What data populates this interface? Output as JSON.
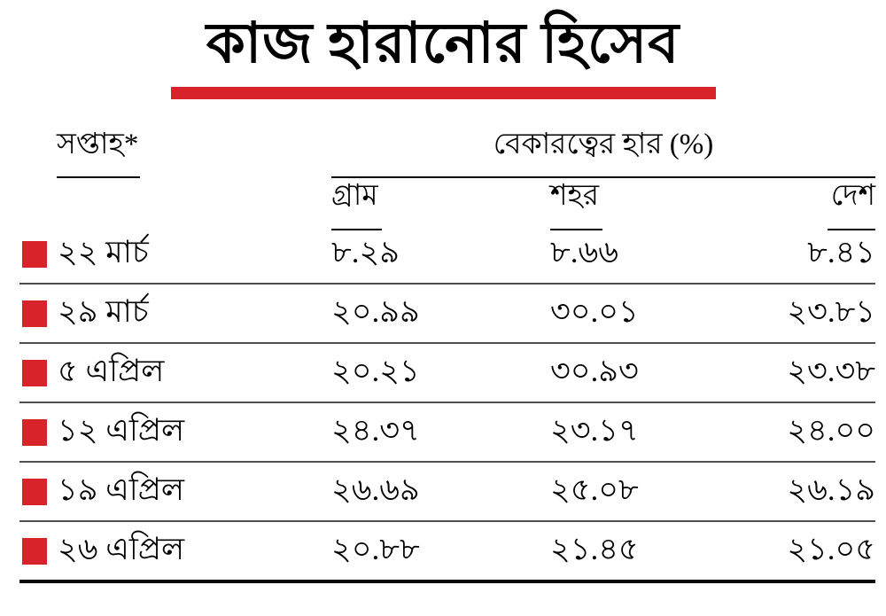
{
  "colors": {
    "accent_red": "#d8232a",
    "row_rule": "#4f4f4f",
    "bottom_rule": "#0a0a0a",
    "text": "#000000"
  },
  "title": {
    "text": "কাজ হারানোর হিসেব"
  },
  "table": {
    "week_header": "সপ্তাহ*",
    "group_header": "বেকারত্বের হার (%)",
    "subheaders": [
      "গ্রাম",
      "শহর",
      "দেশ"
    ],
    "rows": [
      {
        "week": "২২ মার্চ",
        "values": [
          "৮.২৯",
          "৮.৬৬",
          "৮.৪১"
        ]
      },
      {
        "week": "২৯ মার্চ",
        "values": [
          "২০.৯৯",
          "৩০.০১",
          "২৩.৮১"
        ]
      },
      {
        "week": "৫ এপ্রিল",
        "values": [
          "২০.২১",
          "৩০.৯৩",
          "২৩.৩৮"
        ]
      },
      {
        "week": "১২ এপ্রিল",
        "values": [
          "২৪.৩৭",
          "২৩.১৭",
          "২৪.০০"
        ]
      },
      {
        "week": "১৯ এপ্রিল",
        "values": [
          "২৬.৬৯",
          "২৫.০৮",
          "২৬.১৯"
        ]
      },
      {
        "week": "২৬ এপ্রিল",
        "values": [
          "২০.৮৮",
          "২১.৪৫",
          "২১.০৫"
        ]
      }
    ]
  },
  "chart_data": {
    "type": "table",
    "title": "কাজ হারানোর হিসেব",
    "row_header_label": "সপ্তাহ*",
    "value_group_label": "বেকারত্বের হার (%)",
    "columns": [
      "গ্রাম",
      "শহর",
      "দেশ"
    ],
    "rows": [
      {
        "week": "২২ মার্চ",
        "gram": "৮.২৯",
        "shohor": "৮.৬৬",
        "desh": "৮.৪১"
      },
      {
        "week": "২৯ মার্চ",
        "gram": "২০.৯৯",
        "shohor": "৩০.০১",
        "desh": "২৩.৮১"
      },
      {
        "week": "৫ এপ্রিল",
        "gram": "২০.২১",
        "shohor": "৩০.৯৩",
        "desh": "২৩.৩৮"
      },
      {
        "week": "১২ এপ্রিল",
        "gram": "২৪.৩৭",
        "shohor": "২৩.১৭",
        "desh": "২৪.০০"
      },
      {
        "week": "১৯ এপ্রিল",
        "gram": "২৬.৬৯",
        "shohor": "২৫.০৮",
        "desh": "২৬.১৯"
      },
      {
        "week": "২৬ এপ্রিল",
        "gram": "২০.৮৮",
        "shohor": "২১.৪৫",
        "desh": "২১.০৫"
      }
    ]
  }
}
